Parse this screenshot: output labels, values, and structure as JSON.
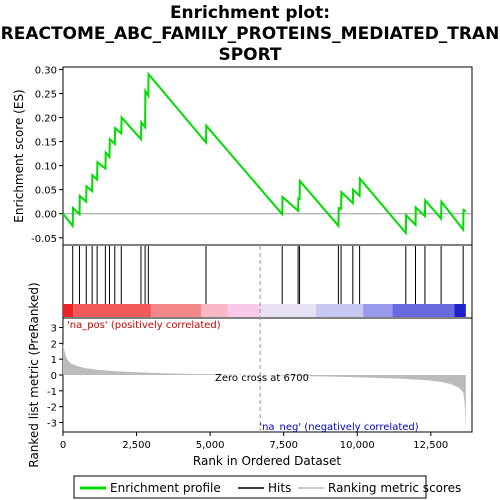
{
  "title_lines": [
    "Enrichment plot:",
    "REACTOME_ABC_FAMILY_PROTEINS_MEDIATED_TRAN",
    "SPORT"
  ],
  "legend": {
    "items": [
      {
        "label": "Enrichment profile",
        "color": "#00dd00"
      },
      {
        "label": "Hits",
        "color": "#000000"
      },
      {
        "label": "Ranking metric scores",
        "color": "#bbbbbb"
      }
    ]
  },
  "colors": {
    "enrichment_line": "#00dd00",
    "hit_line": "#000000",
    "metric_fill": "#bbbbbb",
    "zero_line": "#999999",
    "pos_label": "#cc0000",
    "neg_label": "#0000cc"
  },
  "chart_data": [
    {
      "type": "line",
      "name": "enrichment-score-panel",
      "ylabel": "Enrichment score (ES)",
      "ylim": [
        -0.065,
        0.305
      ],
      "xlim": [
        0,
        13900
      ],
      "yticks": [
        "-0.05",
        "0.00",
        "0.05",
        "0.10",
        "0.15",
        "0.20",
        "0.25",
        "0.30"
      ],
      "ytick_values": [
        -0.05,
        0.0,
        0.05,
        0.1,
        0.15,
        0.2,
        0.25,
        0.3
      ],
      "x": [
        0,
        330,
        340,
        560,
        570,
        790,
        800,
        990,
        1000,
        1160,
        1170,
        1440,
        1450,
        1580,
        1590,
        1760,
        1770,
        1980,
        1990,
        2650,
        2660,
        2790,
        2800,
        2900,
        2910,
        4860,
        4870,
        7450,
        7460,
        7990,
        8000,
        8040,
        8050,
        9360,
        9370,
        9450,
        9460,
        9850,
        9860,
        10080,
        10090,
        11650,
        11660,
        11980,
        11990,
        12300,
        12310,
        12850,
        12860,
        13600,
        13610,
        13690
      ],
      "y": [
        0.0,
        -0.025,
        0.012,
        -0.001,
        0.037,
        0.025,
        0.057,
        0.047,
        0.08,
        0.071,
        0.107,
        0.094,
        0.127,
        0.118,
        0.155,
        0.145,
        0.178,
        0.167,
        0.2,
        0.155,
        0.19,
        0.18,
        0.255,
        0.245,
        0.29,
        0.148,
        0.183,
        -0.001,
        0.035,
        0.006,
        0.032,
        0.031,
        0.068,
        -0.025,
        0.012,
        0.01,
        0.045,
        0.022,
        0.05,
        0.037,
        0.073,
        -0.04,
        -0.003,
        -0.023,
        0.013,
        -0.005,
        0.028,
        -0.01,
        0.025,
        -0.033,
        0.008,
        0.005
      ]
    },
    {
      "type": "scatter",
      "name": "hits-panel",
      "x": [
        330,
        560,
        790,
        990,
        1160,
        1440,
        1580,
        1760,
        1980,
        2650,
        2790,
        2900,
        4860,
        7450,
        7990,
        8040,
        9360,
        9450,
        9850,
        10080,
        11650,
        11980,
        12300,
        12850,
        13600
      ]
    },
    {
      "type": "area",
      "name": "ranked-metric-panel",
      "ylabel": "Ranked list metric (PreRanked)",
      "xlabel": "Rank in Ordered Dataset",
      "ylim": [
        -3.6,
        3.6
      ],
      "xlim": [
        0,
        13900
      ],
      "yticks": [
        "-3",
        "-2",
        "-1",
        "0",
        "1",
        "2",
        "3"
      ],
      "ytick_values": [
        -3,
        -2,
        -1,
        0,
        1,
        2,
        3
      ],
      "xticks": [
        "0",
        "2,500",
        "5,000",
        "7,500",
        "10,000",
        "12,500"
      ],
      "xtick_values": [
        0,
        2500,
        5000,
        7500,
        10000,
        12500
      ],
      "x": [
        0,
        30,
        100,
        200,
        300,
        500,
        800,
        1200,
        1800,
        2500,
        3500,
        5000,
        6000,
        6700,
        7500,
        8500,
        9500,
        10500,
        11500,
        12300,
        12800,
        13200,
        13450,
        13600,
        13650,
        13690
      ],
      "y": [
        2.0,
        1.7,
        1.15,
        0.85,
        0.7,
        0.55,
        0.42,
        0.32,
        0.24,
        0.17,
        0.1,
        0.05,
        0.02,
        0.0,
        -0.04,
        -0.08,
        -0.12,
        -0.17,
        -0.24,
        -0.32,
        -0.42,
        -0.58,
        -0.8,
        -1.1,
        -1.7,
        -3.5
      ],
      "zero_cross_label": "Zero cross at 6700",
      "zero_cross_x": 6700,
      "pos_label": "'na_pos' (positively correlated)",
      "neg_label": "'na_neg' (negatively correlated)"
    }
  ],
  "heat_bar": {
    "segments": [
      {
        "from": 0,
        "to": 350,
        "color": "#ee2222"
      },
      {
        "from": 350,
        "to": 3000,
        "color": "#f25a5a"
      },
      {
        "from": 3000,
        "to": 4700,
        "color": "#f58888"
      },
      {
        "from": 4700,
        "to": 5600,
        "color": "#f8b8c8"
      },
      {
        "from": 5600,
        "to": 6700,
        "color": "#f9c9e8"
      },
      {
        "from": 6700,
        "to": 8600,
        "color": "#e8e0f5"
      },
      {
        "from": 8600,
        "to": 10200,
        "color": "#c8c8f2"
      },
      {
        "from": 10200,
        "to": 11200,
        "color": "#9a9aee"
      },
      {
        "from": 11200,
        "to": 13300,
        "color": "#6a6ae0"
      },
      {
        "from": 13300,
        "to": 13690,
        "color": "#1f1fcc"
      }
    ]
  }
}
